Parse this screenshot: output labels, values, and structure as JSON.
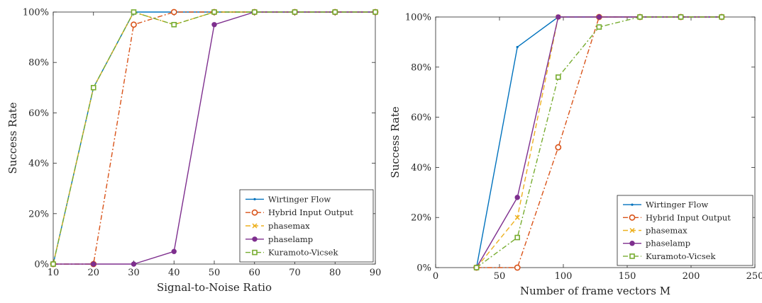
{
  "chart_data": [
    {
      "type": "line",
      "xlabel": "Signal-to-Noise Ratio",
      "ylabel": "Success Rate",
      "xlim": [
        10,
        90
      ],
      "ylim": [
        0,
        100
      ],
      "xticks": [
        10,
        20,
        30,
        40,
        50,
        60,
        70,
        80,
        90
      ],
      "yticks": [
        0,
        20,
        40,
        60,
        80,
        100
      ],
      "x_tick_labels": [
        "10",
        "20",
        "30",
        "40",
        "50",
        "60",
        "70",
        "80",
        "90"
      ],
      "y_tick_labels": [
        "0%",
        "20%",
        "40%",
        "60%",
        "80%",
        "100%"
      ],
      "grid": false,
      "legend_position": "bottom-right",
      "x": [
        10,
        20,
        30,
        40,
        50,
        60,
        70,
        80,
        90
      ],
      "series": [
        {
          "name": "Wirtinger Flow",
          "values": [
            0,
            70,
            100,
            100,
            100,
            100,
            100,
            100,
            100
          ]
        },
        {
          "name": "Hybrid Input Output",
          "values": [
            0,
            0,
            95,
            100,
            100,
            100,
            100,
            100,
            100
          ]
        },
        {
          "name": "phasemax",
          "values": [
            0,
            70,
            100,
            95,
            100,
            100,
            100,
            100,
            100
          ]
        },
        {
          "name": "phaselamp",
          "values": [
            0,
            0,
            0,
            5,
            95,
            100,
            100,
            100,
            100
          ]
        },
        {
          "name": "Kuramoto-Vicsek",
          "values": [
            0,
            70,
            100,
            95,
            100,
            100,
            100,
            100,
            100
          ]
        }
      ]
    },
    {
      "type": "line",
      "xlabel": "Number of frame vectors M",
      "ylabel": "Success Rate",
      "xlim": [
        0,
        250
      ],
      "ylim": [
        0,
        100
      ],
      "xticks": [
        0,
        50,
        100,
        150,
        200,
        250
      ],
      "yticks": [
        0,
        20,
        40,
        60,
        80,
        100
      ],
      "x_tick_labels": [
        "0",
        "50",
        "100",
        "150",
        "200",
        "250"
      ],
      "y_tick_labels": [
        "0%",
        "20%",
        "40%",
        "60%",
        "80%",
        "100%"
      ],
      "grid": false,
      "legend_position": "bottom-right",
      "x": [
        32,
        64,
        96,
        128,
        160,
        192,
        224
      ],
      "series": [
        {
          "name": "Wirtinger Flow",
          "values": [
            0,
            88,
            100,
            100,
            100,
            100,
            100
          ]
        },
        {
          "name": "Hybrid Input Output",
          "values": [
            0,
            0,
            48,
            100,
            100,
            100,
            100
          ]
        },
        {
          "name": "phasemax",
          "values": [
            0,
            20,
            100,
            100,
            100,
            100,
            100
          ]
        },
        {
          "name": "phaselamp",
          "values": [
            0,
            28,
            100,
            100,
            100,
            100,
            100
          ]
        },
        {
          "name": "Kuramoto-Vicsek",
          "values": [
            0,
            12,
            76,
            96,
            100,
            100,
            100
          ]
        }
      ]
    }
  ],
  "series_styles": [
    {
      "color": "#0072BD",
      "dash": "",
      "marker": "point"
    },
    {
      "color": "#D95319",
      "dash": "7,3,2,3",
      "marker": "circle"
    },
    {
      "color": "#EDB120",
      "dash": "7,4",
      "marker": "x"
    },
    {
      "color": "#7E2F8E",
      "dash": "",
      "marker": "dot"
    },
    {
      "color": "#77AC30",
      "dash": "7,3,2,3",
      "marker": "square"
    }
  ]
}
